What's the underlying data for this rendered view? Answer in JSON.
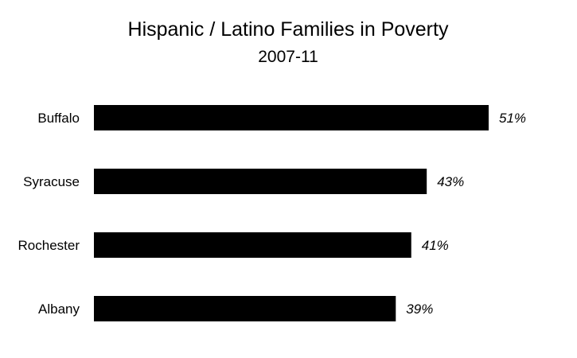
{
  "chart_data": {
    "type": "bar",
    "orientation": "horizontal",
    "title": "Hispanic / Latino Families in Poverty",
    "subtitle": "2007-11",
    "categories": [
      "Buffalo",
      "Syracuse",
      "Rochester",
      "Albany"
    ],
    "values": [
      51,
      43,
      41,
      39
    ],
    "value_labels": [
      "51%",
      "43%",
      "41%",
      "39%"
    ],
    "unit": "%",
    "xlim": [
      0,
      51
    ],
    "xlabel": "",
    "ylabel": "",
    "grid": false,
    "legend": "none",
    "bar_color": "#000000"
  }
}
